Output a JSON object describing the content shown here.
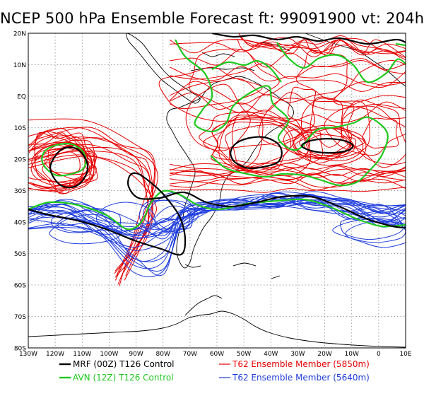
{
  "title": "NCEP 500 hPa Ensemble Forecast  ft: 99091900 vt: 204h",
  "lat_labels": [
    "20N",
    "10N",
    "EQ",
    "10S",
    "20S",
    "30S",
    "40S",
    "50S",
    "60S",
    "70S",
    "80S"
  ],
  "lon_labels": [
    "130W",
    "120W",
    "110W",
    "100W",
    "90W",
    "80W",
    "70W",
    "60W",
    "50W",
    "40W",
    "30W",
    "20W",
    "10W",
    "0",
    "10E"
  ],
  "legend": [
    {
      "label": "MRF (00Z) T126 Control",
      "color": "#000000"
    },
    {
      "label": "AVN (12Z) T126 Control",
      "color": "#1ec81e"
    },
    {
      "label": "T62 Ensemble Member (5850m)",
      "color": "#e60000"
    },
    {
      "label": "T62 Ensemble Member (5640m)",
      "color": "#1e3cdc"
    }
  ],
  "colors": {
    "mrf": "#000000",
    "avn": "#1ec81e",
    "red_members": "#e60000",
    "blue_members": "#1e3cdc",
    "coast": "#000000",
    "grid": "#888888"
  }
}
